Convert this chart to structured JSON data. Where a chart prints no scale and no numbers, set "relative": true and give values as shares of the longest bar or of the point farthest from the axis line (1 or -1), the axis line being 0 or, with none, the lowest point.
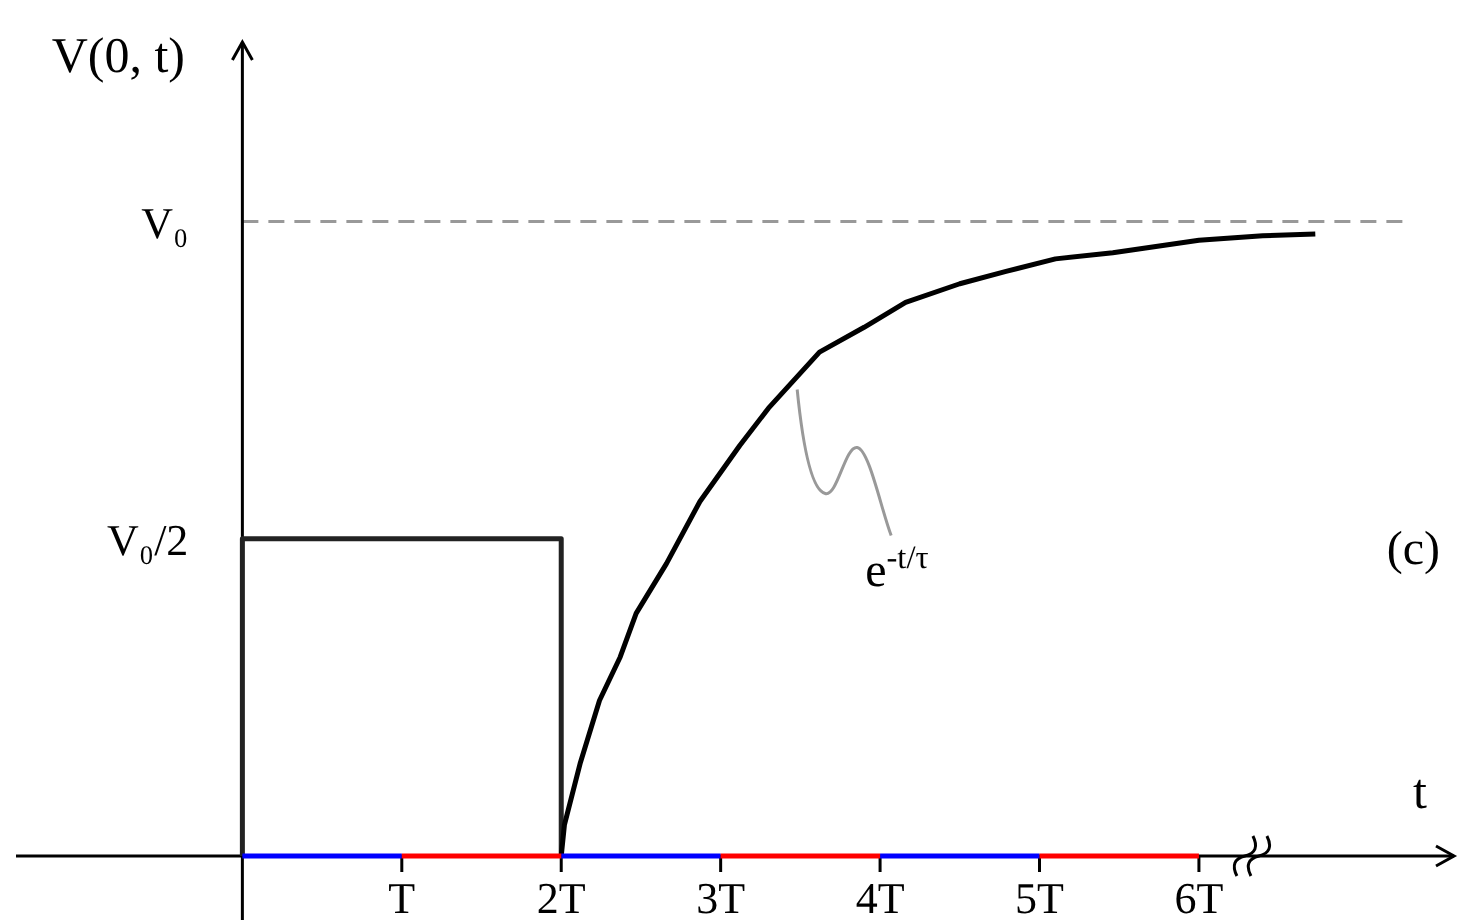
{
  "chart_data": {
    "type": "line",
    "xlabel": "t",
    "ylabel": "V(0, t)",
    "relative": true,
    "xlim": [
      -1.42,
      7.6
    ],
    "xticks": [
      {
        "value": 1,
        "label": "T"
      },
      {
        "value": 2,
        "label": "2T"
      },
      {
        "value": 3,
        "label": "3T"
      },
      {
        "value": 4,
        "label": "4T"
      },
      {
        "value": 5,
        "label": "5T"
      },
      {
        "value": 6,
        "label": "6T"
      }
    ],
    "series": [
      {
        "color": "#222222",
        "x": [
          0,
          0,
          2,
          2
        ],
        "values": [
          0,
          0.51,
          0.51,
          0
        ]
      },
      {
        "color": "#000000",
        "x": [
          2,
          2.02,
          2.12,
          2.24,
          2.37,
          2.47,
          2.66,
          2.87,
          3.12,
          3.3,
          3.62,
          3.9,
          4.16,
          4.5,
          4.79,
          5.1,
          5.46,
          6.0,
          6.4,
          6.73
        ],
        "values": [
          0,
          0.05,
          0.15,
          0.25,
          0.32,
          0.39,
          0.47,
          0.57,
          0.66,
          0.72,
          0.81,
          0.85,
          0.89,
          0.92,
          0.94,
          0.96,
          0.97,
          0.99,
          0.997,
          1
        ]
      },
      {
        "color": "#0000ff",
        "x": [
          0,
          1,
          1.5,
          2,
          3,
          3.5,
          4,
          5
        ],
        "values": [
          0,
          0,
          null,
          0,
          0,
          null,
          0,
          0
        ]
      },
      {
        "color": "#ff0000",
        "x": [
          1,
          2,
          2.5,
          3,
          4,
          4.5,
          5,
          6
        ],
        "values": [
          0,
          0,
          null,
          0,
          0,
          null,
          0,
          0
        ]
      }
    ],
    "ref_lines": [
      {
        "axis": "y",
        "value": 1.02,
        "label": "V₀",
        "color": "#999999",
        "line_style": "dashed"
      }
    ],
    "annotations": [
      {
        "text": "e$^{-t/τ}$",
        "x": 3.48,
        "y": 0.75
      },
      {
        "text": "V₀/2",
        "x": 0,
        "y": 0.51
      },
      "(c)"
    ]
  }
}
